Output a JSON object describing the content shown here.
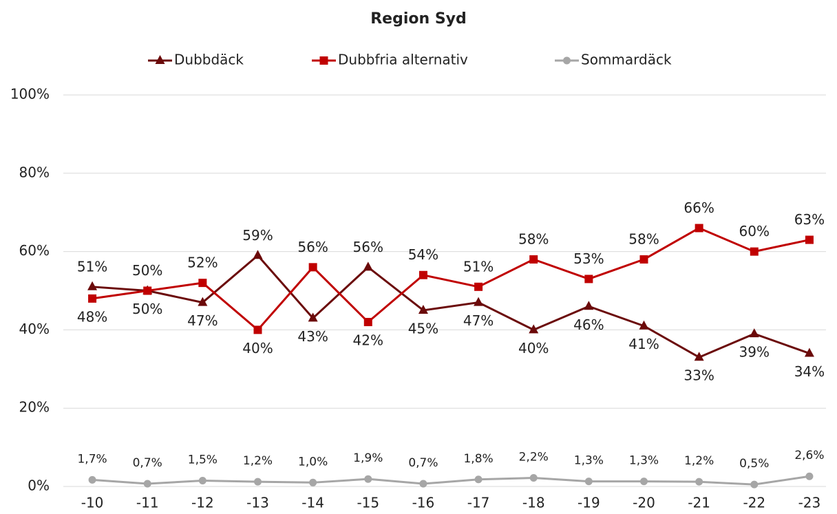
{
  "chart_data": {
    "type": "line",
    "title": "Region Syd",
    "categories": [
      "-10",
      "-11",
      "-12",
      "-13",
      "-14",
      "-15",
      "-16",
      "-17",
      "-18",
      "-19",
      "-20",
      "-21",
      "-22",
      "-23"
    ],
    "series": [
      {
        "name": "Dubbdäck",
        "color": "#6b0a0a",
        "marker": "triangle",
        "values": [
          51,
          50,
          47,
          59,
          43,
          56,
          45,
          47,
          40,
          46,
          41,
          33,
          39,
          34
        ],
        "value_labels": [
          "51%",
          "50%",
          "47%",
          "59%",
          "43%",
          "56%",
          "45%",
          "47%",
          "40%",
          "46%",
          "41%",
          "33%",
          "39%",
          "34%"
        ]
      },
      {
        "name": "Dubbfria alternativ",
        "color": "#c00000",
        "marker": "square",
        "values": [
          48,
          50,
          52,
          40,
          56,
          42,
          54,
          51,
          58,
          53,
          58,
          66,
          60,
          63
        ],
        "value_labels": [
          "48%",
          "50%",
          "52%",
          "40%",
          "56%",
          "42%",
          "54%",
          "51%",
          "58%",
          "53%",
          "58%",
          "66%",
          "60%",
          "63%"
        ]
      },
      {
        "name": "Sommardäck",
        "color": "#a6a6a6",
        "marker": "circle",
        "values": [
          1.7,
          0.7,
          1.5,
          1.2,
          1.0,
          1.9,
          0.7,
          1.8,
          2.2,
          1.3,
          1.3,
          1.2,
          0.5,
          2.6
        ],
        "value_labels": [
          "1,7%",
          "0,7%",
          "1,5%",
          "1,2%",
          "1,0%",
          "1,9%",
          "0,7%",
          "1,8%",
          "2,2%",
          "1,3%",
          "1,3%",
          "1,2%",
          "0,5%",
          "2,6%"
        ]
      }
    ],
    "ylim": [
      0,
      100
    ],
    "yticks": [
      {
        "value": 0,
        "label": "0%"
      },
      {
        "value": 20,
        "label": "20%"
      },
      {
        "value": 40,
        "label": "40%"
      },
      {
        "value": 60,
        "label": "60%"
      },
      {
        "value": 80,
        "label": "80%"
      },
      {
        "value": 100,
        "label": "100%"
      }
    ],
    "grid": true,
    "legend": "top"
  }
}
